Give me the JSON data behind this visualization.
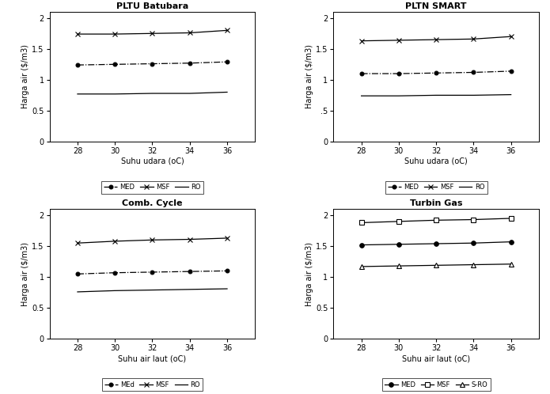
{
  "subplots": [
    {
      "title": "PLTU Batubara",
      "xlabel": "Suhu udara (oC)",
      "ylabel": "Harga air ($/m3)",
      "x": [
        28,
        30,
        32,
        34,
        36
      ],
      "series": [
        {
          "label": "MED",
          "y": [
            1.24,
            1.25,
            1.26,
            1.27,
            1.29
          ],
          "style": "-.",
          "marker": "o",
          "color": "black",
          "markersize": 3.5
        },
        {
          "label": "MSF",
          "y": [
            1.74,
            1.74,
            1.75,
            1.76,
            1.8
          ],
          "style": "-",
          "marker": "x",
          "color": "black",
          "markersize": 4.5
        },
        {
          "label": "RO",
          "y": [
            0.77,
            0.77,
            0.78,
            0.78,
            0.8
          ],
          "style": "-",
          "marker": null,
          "color": "black",
          "markersize": 3
        }
      ],
      "ylim": [
        0,
        2.1
      ],
      "yticks": [
        0,
        0.5,
        1,
        1.5,
        2
      ],
      "ytick_labels": [
        "0",
        "0.5",
        "1",
        "1.5",
        "2"
      ]
    },
    {
      "title": "PLTN SMART",
      "xlabel": "Suhu udara (oC)",
      "ylabel": "Harga air ($/m3)",
      "x": [
        28,
        30,
        32,
        34,
        36
      ],
      "series": [
        {
          "label": "MED",
          "y": [
            1.1,
            1.1,
            1.11,
            1.12,
            1.14
          ],
          "style": "-.",
          "marker": "o",
          "color": "black",
          "markersize": 3.5
        },
        {
          "label": "MSF",
          "y": [
            1.63,
            1.64,
            1.65,
            1.66,
            1.7
          ],
          "style": "-",
          "marker": "x",
          "color": "black",
          "markersize": 4.5
        },
        {
          "label": "RO",
          "y": [
            0.74,
            0.74,
            0.75,
            0.75,
            0.76
          ],
          "style": "-",
          "marker": null,
          "color": "black",
          "markersize": 3
        }
      ],
      "ylim": [
        0,
        2.1
      ],
      "yticks": [
        0,
        0.5,
        1,
        1.5,
        2
      ],
      "ytick_labels": [
        "0",
        ".5",
        "1",
        "1.5",
        "2"
      ]
    },
    {
      "title": "Comb. Cycle",
      "xlabel": "Suhu air laut (oC)",
      "ylabel": "Harga air ($/m3)",
      "x": [
        28,
        30,
        32,
        34,
        36
      ],
      "series": [
        {
          "label": "MEd",
          "y": [
            1.05,
            1.07,
            1.08,
            1.09,
            1.1
          ],
          "style": "-.",
          "marker": "o",
          "color": "black",
          "markersize": 3.5
        },
        {
          "label": "MSF",
          "y": [
            1.55,
            1.58,
            1.6,
            1.61,
            1.63
          ],
          "style": "-",
          "marker": "x",
          "color": "black",
          "markersize": 4.5
        },
        {
          "label": "RO",
          "y": [
            0.76,
            0.78,
            0.79,
            0.8,
            0.81
          ],
          "style": "-",
          "marker": null,
          "color": "black",
          "markersize": 3
        }
      ],
      "ylim": [
        0,
        2.1
      ],
      "yticks": [
        0,
        0.5,
        1,
        1.5,
        2
      ],
      "ytick_labels": [
        "0",
        "0.5",
        "1",
        "1.5",
        "2"
      ]
    },
    {
      "title": "Turbin Gas",
      "xlabel": "Suhu air laut (oC)",
      "ylabel": "Harga air ($/m3)",
      "x": [
        28,
        30,
        32,
        34,
        36
      ],
      "series": [
        {
          "label": "MED",
          "y": [
            1.52,
            1.53,
            1.54,
            1.55,
            1.57
          ],
          "style": "-",
          "marker": "o",
          "color": "black",
          "markersize": 4,
          "mfc": "black"
        },
        {
          "label": "MSF",
          "y": [
            1.88,
            1.9,
            1.92,
            1.93,
            1.95
          ],
          "style": "-",
          "marker": "s",
          "color": "black",
          "markersize": 4,
          "mfc": "white"
        },
        {
          "label": "S-RO",
          "y": [
            1.17,
            1.18,
            1.19,
            1.2,
            1.21
          ],
          "style": "-",
          "marker": "^",
          "color": "black",
          "markersize": 4,
          "mfc": "white"
        }
      ],
      "ylim": [
        0,
        2.1
      ],
      "yticks": [
        0,
        0.5,
        1,
        1.5,
        2
      ],
      "ytick_labels": [
        "0",
        "0.5",
        "1",
        "1.5",
        "2"
      ]
    }
  ],
  "xticks": [
    28,
    30,
    32,
    34,
    36
  ],
  "background": "#ffffff",
  "figsize": [
    6.95,
    4.98
  ],
  "dpi": 100
}
